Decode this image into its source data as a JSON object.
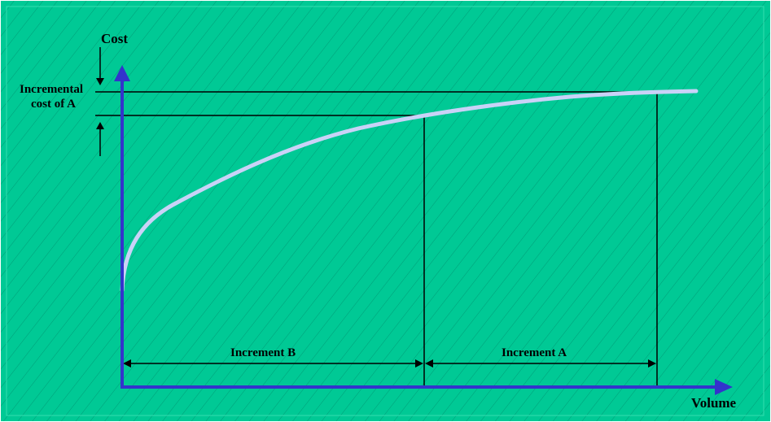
{
  "colors": {
    "background": "#00C995",
    "hatch": "#009E78",
    "axis": "#3333CC",
    "curve": "#C9D2F7",
    "line": "#000000"
  },
  "labels": {
    "y_axis": "Cost",
    "x_axis": "Volume",
    "incremental_cost_line1": "Incremental",
    "incremental_cost_line2": "cost of A",
    "increment_b": "Increment B",
    "increment_a": "Increment A"
  },
  "icons": {
    "axis_arrow": "arrowhead",
    "dimension_arrow": "double-headed-arrow"
  }
}
